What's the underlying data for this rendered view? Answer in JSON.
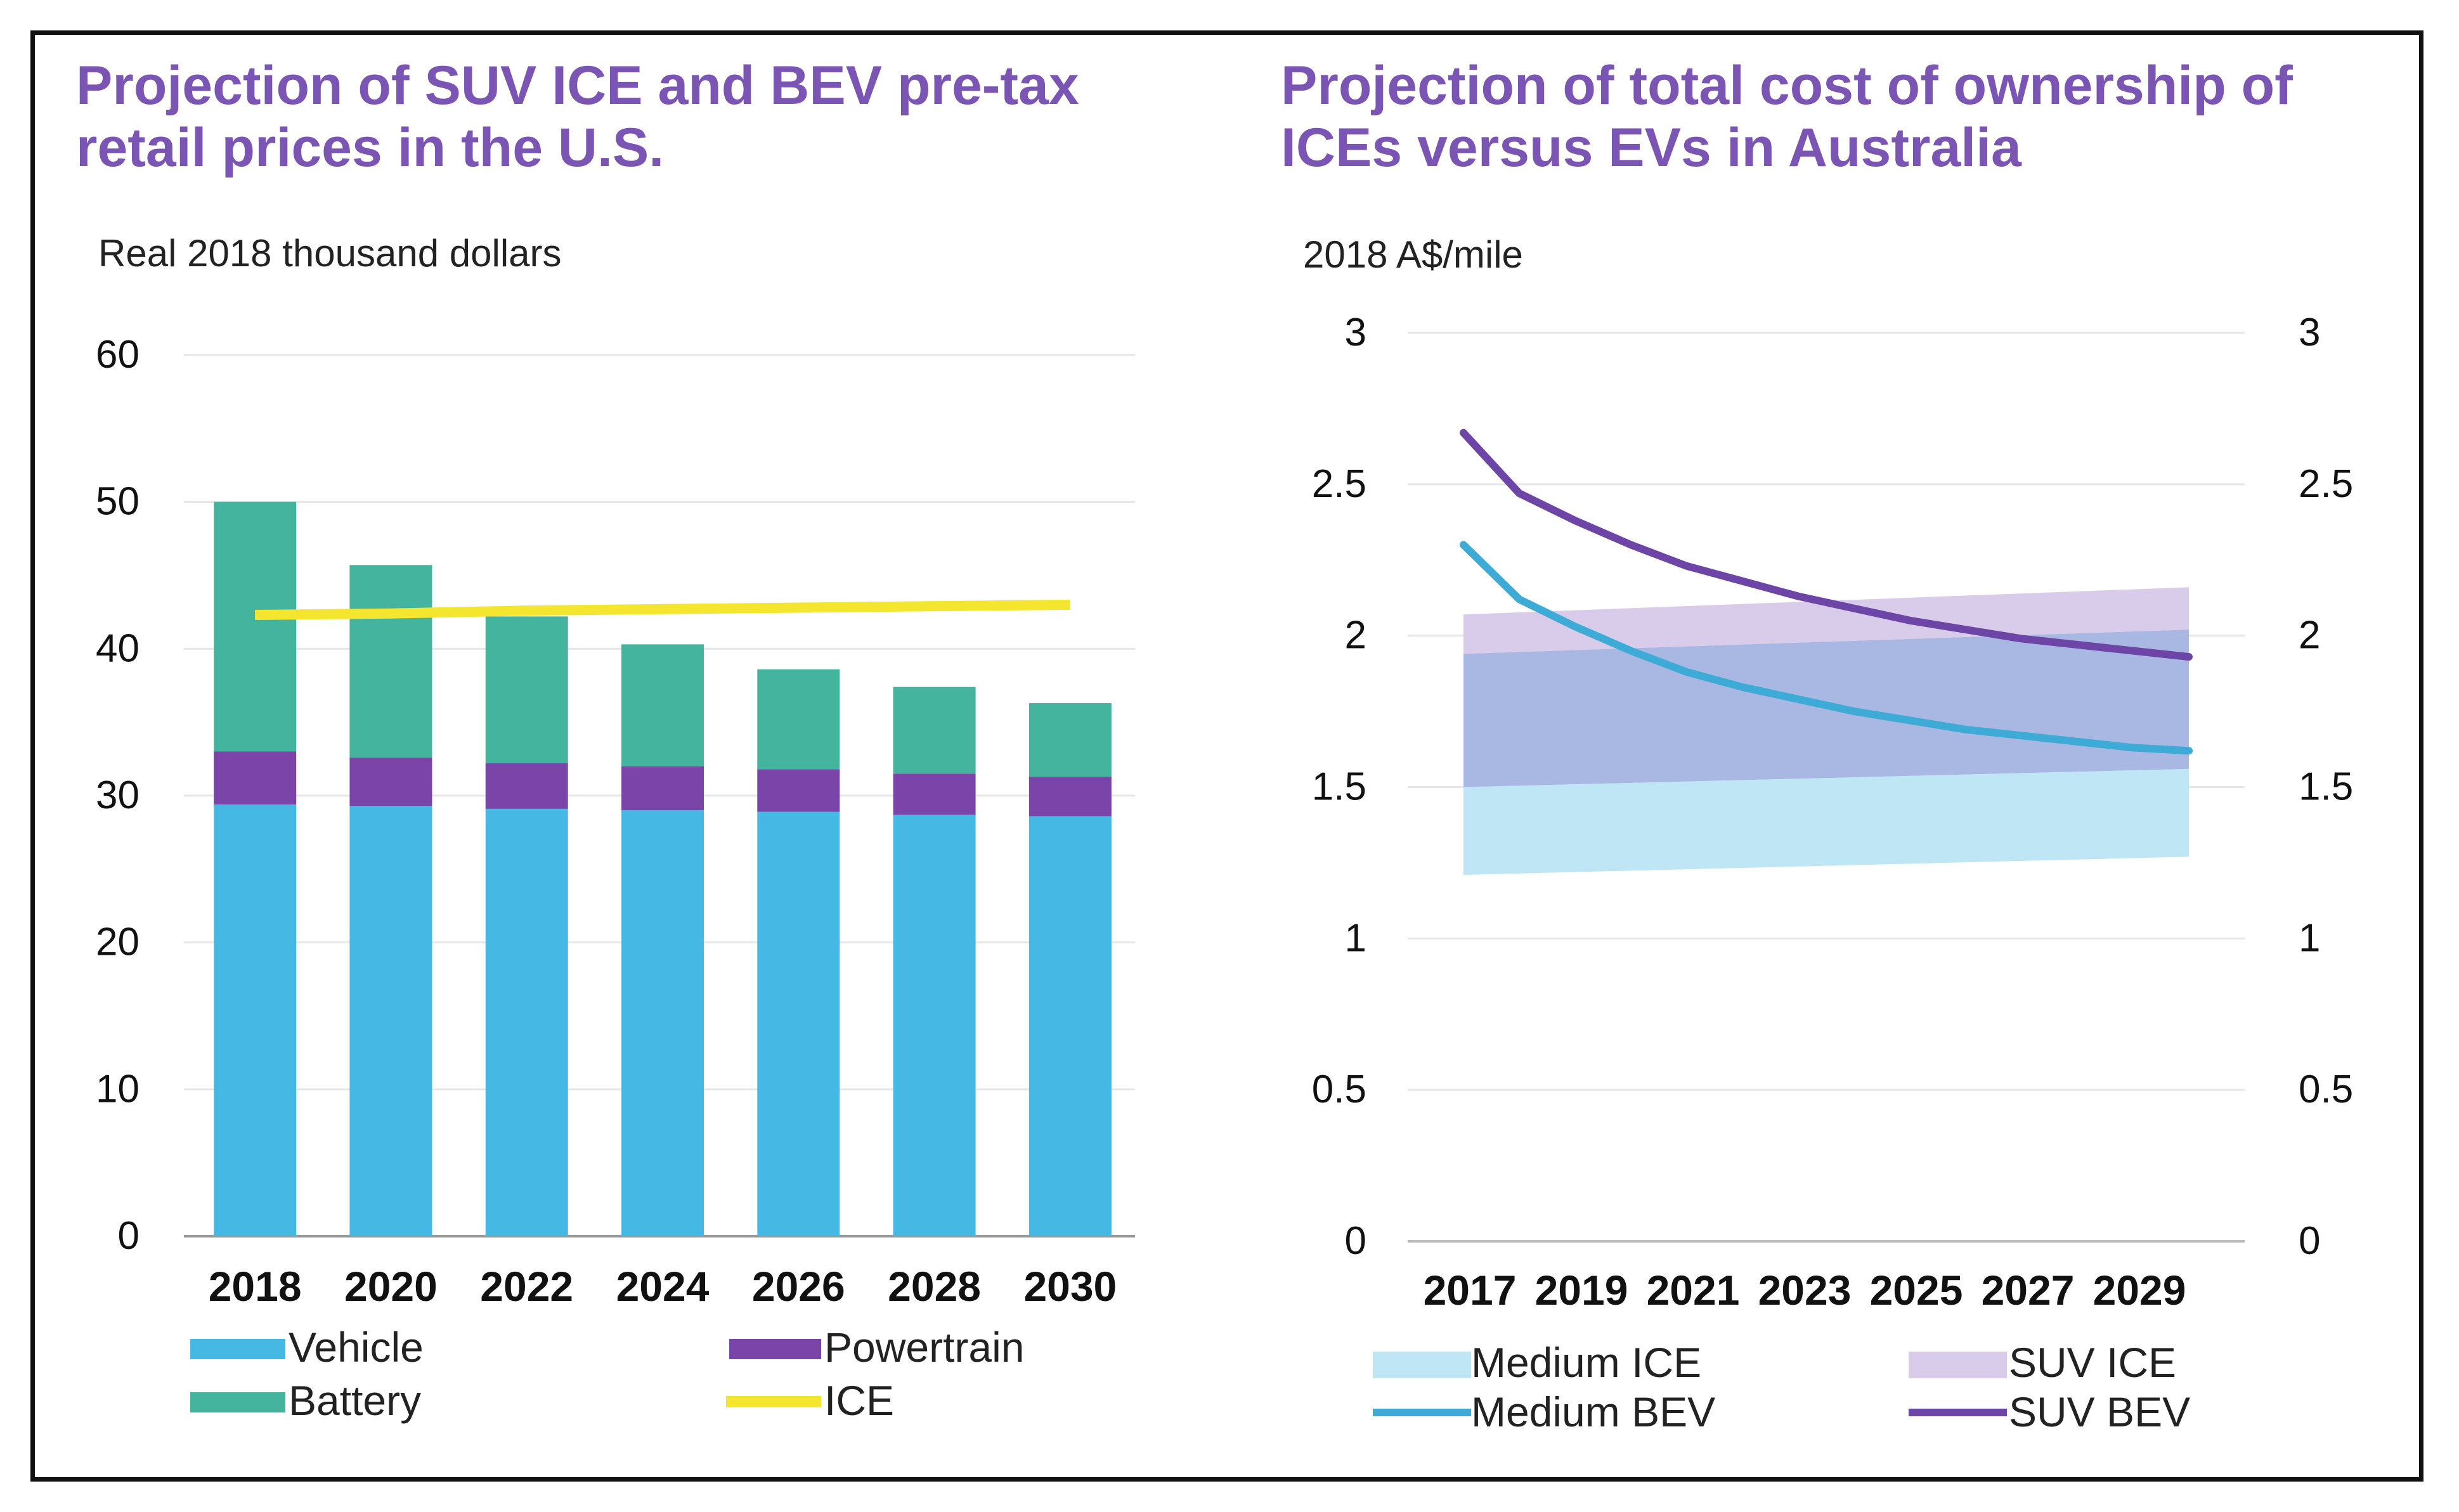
{
  "colors": {
    "title": "#7a55b3",
    "vehicle": "#45b9e3",
    "powertrain": "#7b44a9",
    "battery": "#45b49f",
    "ice_line": "#f4e62e",
    "medium_ice": "#bfe6f4",
    "suv_ice": "#d9ccea",
    "overlap": "#a9b8e3",
    "medium_bev": "#3eaad6",
    "suv_bev": "#6c45a7"
  },
  "chart_data": [
    {
      "type": "bar",
      "stacked": true,
      "title": "Projection of SUV ICE and BEV pre-tax retail prices in the U.S.",
      "ylabel": "Real 2018 thousand dollars",
      "xlabel": "",
      "ylim": [
        0,
        60
      ],
      "yticks": [
        "0",
        "10",
        "20",
        "30",
        "40",
        "50",
        "60"
      ],
      "grid": true,
      "categories": [
        "2018",
        "2020",
        "2022",
        "2024",
        "2026",
        "2028",
        "2030"
      ],
      "series": [
        {
          "name": "Vehicle",
          "values": [
            29.4,
            29.3,
            29.1,
            29.0,
            28.9,
            28.7,
            28.6
          ]
        },
        {
          "name": "Powertrain",
          "values": [
            3.6,
            3.3,
            3.1,
            3.0,
            2.9,
            2.8,
            2.7
          ]
        },
        {
          "name": "Battery",
          "values": [
            17.0,
            13.1,
            10.0,
            8.3,
            6.8,
            5.9,
            5.0
          ]
        }
      ],
      "lines": [
        {
          "name": "ICE",
          "values": [
            42.3,
            42.4,
            42.6,
            42.7,
            42.8,
            42.9,
            43.0
          ]
        }
      ],
      "legend": [
        "Vehicle",
        "Powertrain",
        "Battery",
        "ICE"
      ],
      "legend_position": "bottom"
    },
    {
      "type": "area",
      "title": "Projection of total cost of ownership of ICEs versus EVs in Australia",
      "ylabel": "2018 A$/mile",
      "xlabel": "",
      "ylim": [
        0,
        3
      ],
      "xlim": [
        2016,
        2031
      ],
      "yticks": [
        "0",
        "0.5",
        "1",
        "1.5",
        "2",
        "2.5",
        "3"
      ],
      "yticks_right": [
        "0",
        "0.5",
        "1",
        "1.5",
        "2",
        "2.5",
        "3"
      ],
      "xticks": [
        "2017",
        "2019",
        "2021",
        "2023",
        "2025",
        "2027",
        "2029"
      ],
      "grid": true,
      "x": [
        2017,
        2018,
        2019,
        2020,
        2021,
        2022,
        2023,
        2024,
        2025,
        2026,
        2027,
        2028,
        2029,
        2030
      ],
      "bands": [
        {
          "name": "Medium ICE",
          "x": [
            2017,
            2030
          ],
          "low": [
            1.21,
            1.27
          ],
          "high": [
            1.5,
            1.56
          ]
        },
        {
          "name": "SUV ICE",
          "x": [
            2017,
            2030
          ],
          "low": [
            1.94,
            2.02
          ],
          "high": [
            2.07,
            2.16
          ]
        }
      ],
      "series": [
        {
          "name": "Medium BEV",
          "values": [
            2.3,
            2.12,
            2.03,
            1.95,
            1.88,
            1.83,
            1.79,
            1.75,
            1.72,
            1.69,
            1.67,
            1.65,
            1.63,
            1.62
          ]
        },
        {
          "name": "SUV BEV",
          "values": [
            2.67,
            2.47,
            2.38,
            2.3,
            2.23,
            2.18,
            2.13,
            2.09,
            2.05,
            2.02,
            1.99,
            1.97,
            1.95,
            1.93
          ]
        }
      ],
      "legend": [
        "Medium ICE",
        "SUV ICE",
        "Medium BEV",
        "SUV BEV"
      ],
      "legend_position": "bottom"
    }
  ]
}
